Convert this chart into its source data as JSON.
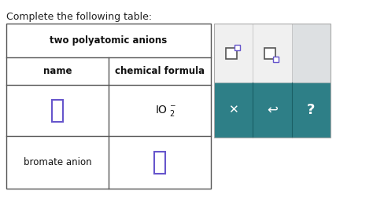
{
  "title": "Complete the following table:",
  "table_header": "two polyatomic anions",
  "col1_header": "name",
  "col2_header": "chemical formula",
  "row2_col1": "bromate anion",
  "bg_color": "#ffffff",
  "border_color": "#555555",
  "input_box_color": "#6655cc",
  "teal_color": "#2e7f87",
  "side_top_bg": "#e8eaeb",
  "side_cell_white": "#f5f5f5",
  "title_fontsize": 9,
  "header_fontsize": 8.5,
  "cell_fontsize": 8.5,
  "formula_fontsize": 10
}
